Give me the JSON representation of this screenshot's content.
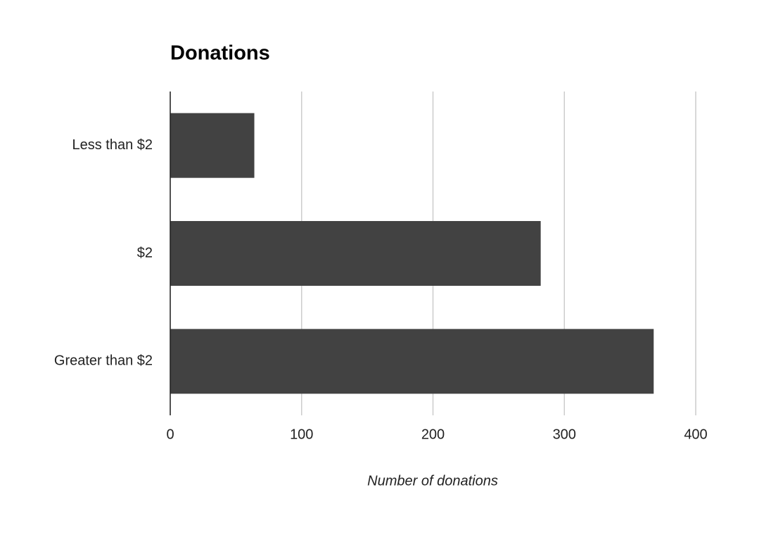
{
  "chart_data": {
    "type": "bar",
    "orientation": "horizontal",
    "title": "Donations",
    "categories": [
      "Less than $2",
      "$2",
      "Greater than $2"
    ],
    "values": [
      64,
      282,
      368
    ],
    "color": "#424242",
    "x_label": "Number of donations",
    "xlim": [
      0,
      400
    ],
    "xticks": [
      0,
      100,
      200,
      300,
      400
    ],
    "grid": true
  }
}
